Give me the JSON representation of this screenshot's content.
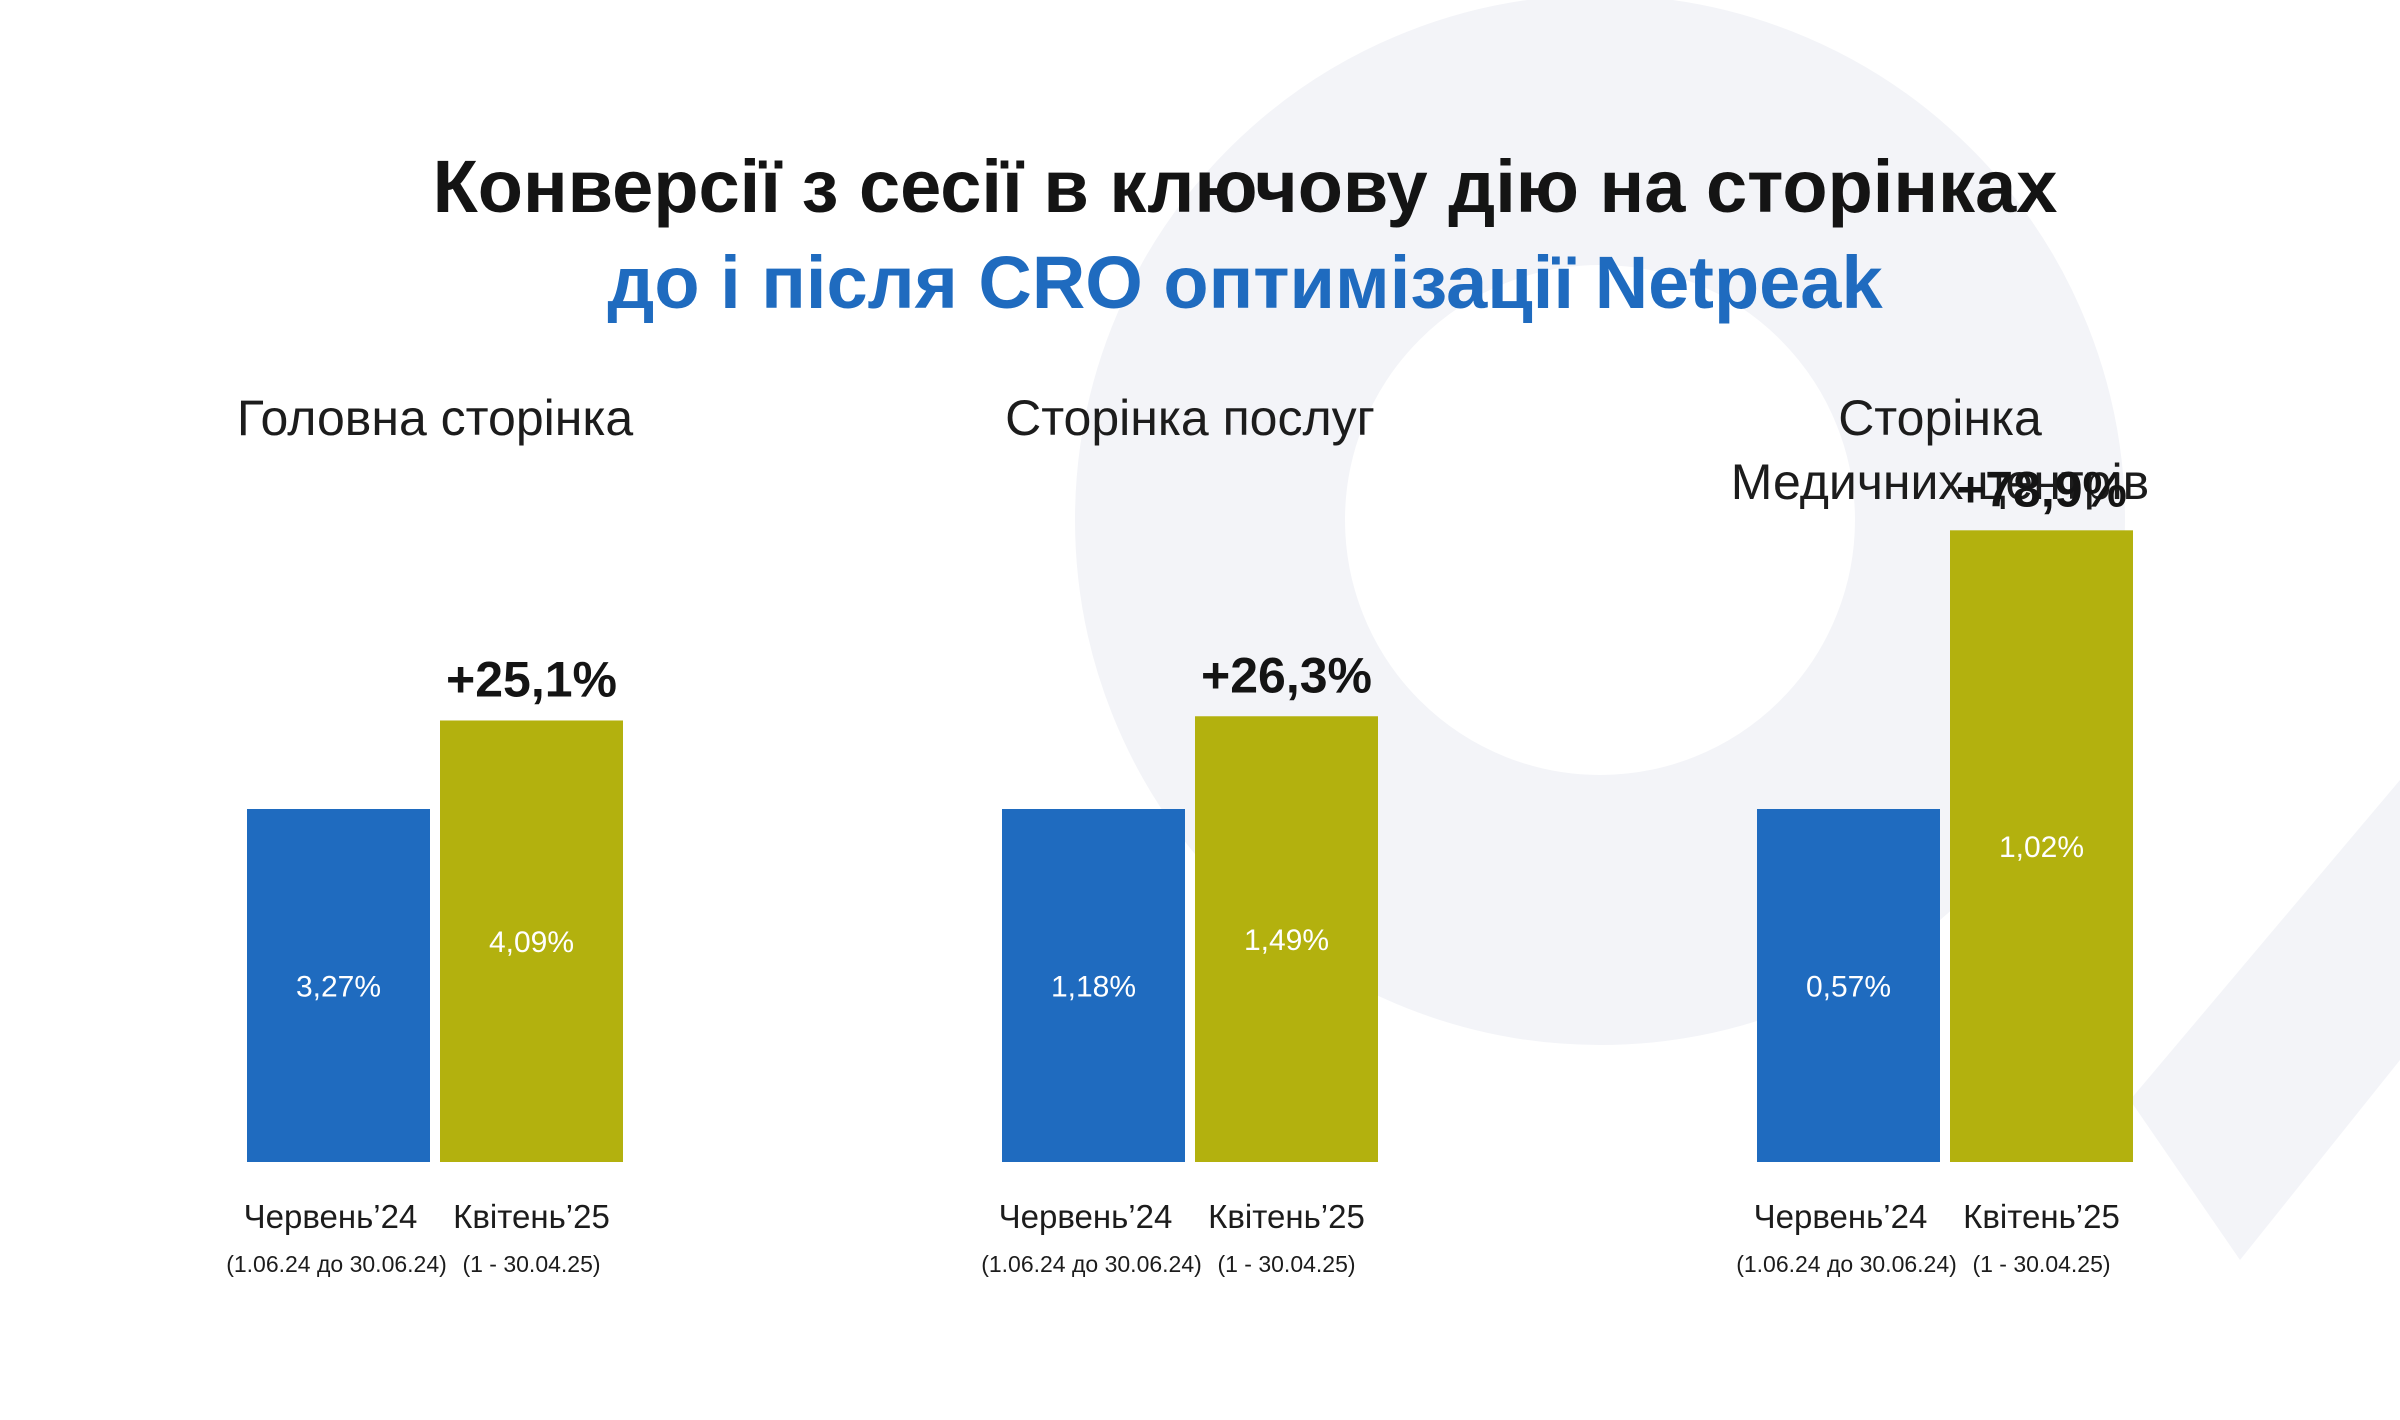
{
  "title": {
    "line1": "Конверсії з сесії в ключову дію на сторінках",
    "line2": "до і після CRO оптимізації Netpeak"
  },
  "colors": {
    "before": "#1f6bbf",
    "after": "#b3b10e",
    "title_accent": "#1f6bbf"
  },
  "chart_data": [
    {
      "type": "bar",
      "title": [
        "Головна сторінка"
      ],
      "categories": [
        "Червень’24",
        "Квітень’25"
      ],
      "periods": [
        "(1.06.24 до 30.06.24)",
        "(1 - 30.04.25)"
      ],
      "values": [
        3.27,
        4.09
      ],
      "value_labels": [
        "3,27%",
        "4,09%"
      ],
      "change_label": "+25,1%"
    },
    {
      "type": "bar",
      "title": [
        "Сторінка послуг"
      ],
      "categories": [
        "Червень’24",
        "Квітень’25"
      ],
      "periods": [
        "(1.06.24 до 30.06.24)",
        "(1 - 30.04.25)"
      ],
      "values": [
        1.18,
        1.49
      ],
      "value_labels": [
        "1,18%",
        "1,49%"
      ],
      "change_label": "+26,3%"
    },
    {
      "type": "bar",
      "title": [
        "Сторінка",
        "Медичних центрів"
      ],
      "categories": [
        "Червень’24",
        "Квітень’25"
      ],
      "periods": [
        "(1.06.24 до 30.06.24)",
        "(1 - 30.04.25)"
      ],
      "values": [
        0.57,
        1.02
      ],
      "value_labels": [
        "0,57%",
        "1,02%"
      ],
      "change_label": "+78,9%"
    }
  ]
}
